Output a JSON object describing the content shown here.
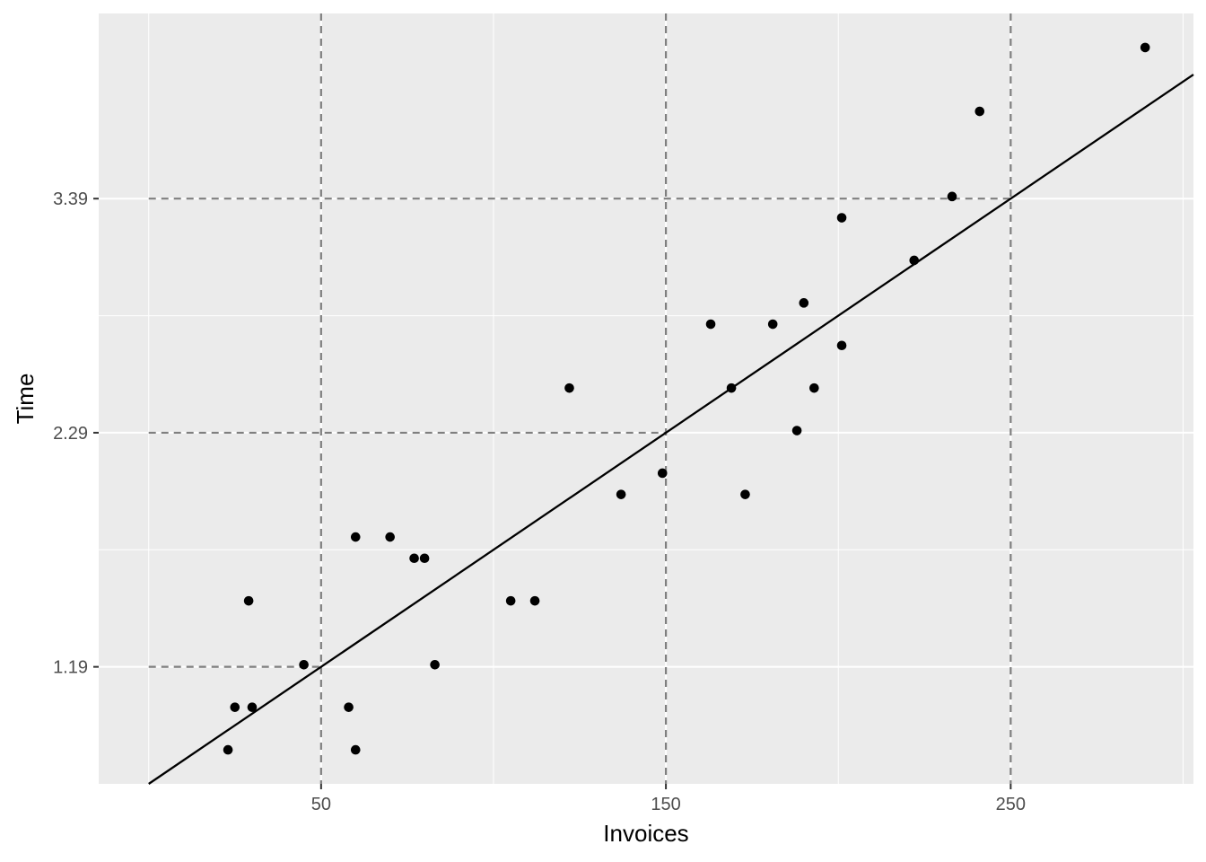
{
  "chart_data": {
    "type": "scatter",
    "title": "",
    "xlabel": "Invoices",
    "ylabel": "Time",
    "xlim": [
      -14.5,
      303
    ],
    "ylim": [
      0.64,
      4.26
    ],
    "x_ticks": [
      {
        "value": 50,
        "label": "50"
      },
      {
        "value": 150,
        "label": "150"
      },
      {
        "value": 250,
        "label": "250"
      }
    ],
    "y_ticks": [
      {
        "value": 1.19,
        "label": "1.19"
      },
      {
        "value": 2.29,
        "label": "2.29"
      },
      {
        "value": 3.39,
        "label": "3.39"
      }
    ],
    "major_grid_x": [
      50,
      150,
      250
    ],
    "major_grid_y": [
      1.19,
      2.29,
      3.39
    ],
    "minor_grid_x": [
      0,
      100,
      200,
      300
    ],
    "minor_grid_y": [
      1.74,
      2.84
    ],
    "panel_background": "#ebebeb",
    "grid_color": "#ffffff",
    "point_color": "#000000",
    "reference_line_color": "#7f7f7f",
    "fit_line": {
      "intercept": 0.64,
      "slope": 0.011,
      "color": "#000000"
    },
    "reference_lines": [
      {
        "x": 50,
        "y": 1.19
      },
      {
        "x": 150,
        "y": 2.29
      },
      {
        "x": 250,
        "y": 3.39
      }
    ],
    "points": [
      {
        "x": 23,
        "y": 0.8
      },
      {
        "x": 25,
        "y": 1.0
      },
      {
        "x": 29,
        "y": 1.5
      },
      {
        "x": 30,
        "y": 1.0
      },
      {
        "x": 45,
        "y": 1.2
      },
      {
        "x": 58,
        "y": 1.0
      },
      {
        "x": 60,
        "y": 0.8
      },
      {
        "x": 60,
        "y": 1.8
      },
      {
        "x": 70,
        "y": 1.8
      },
      {
        "x": 77,
        "y": 1.7
      },
      {
        "x": 80,
        "y": 1.7
      },
      {
        "x": 83,
        "y": 1.2
      },
      {
        "x": 105,
        "y": 1.5
      },
      {
        "x": 112,
        "y": 1.5
      },
      {
        "x": 122,
        "y": 2.5
      },
      {
        "x": 137,
        "y": 2.0
      },
      {
        "x": 149,
        "y": 2.1
      },
      {
        "x": 163,
        "y": 2.8
      },
      {
        "x": 169,
        "y": 2.5
      },
      {
        "x": 173,
        "y": 2.0
      },
      {
        "x": 181,
        "y": 2.8
      },
      {
        "x": 188,
        "y": 2.3
      },
      {
        "x": 190,
        "y": 2.9
      },
      {
        "x": 193,
        "y": 2.5
      },
      {
        "x": 201,
        "y": 2.7
      },
      {
        "x": 201,
        "y": 3.3
      },
      {
        "x": 222,
        "y": 3.1
      },
      {
        "x": 233,
        "y": 3.4
      },
      {
        "x": 241,
        "y": 3.8
      },
      {
        "x": 289,
        "y": 4.1
      }
    ]
  }
}
